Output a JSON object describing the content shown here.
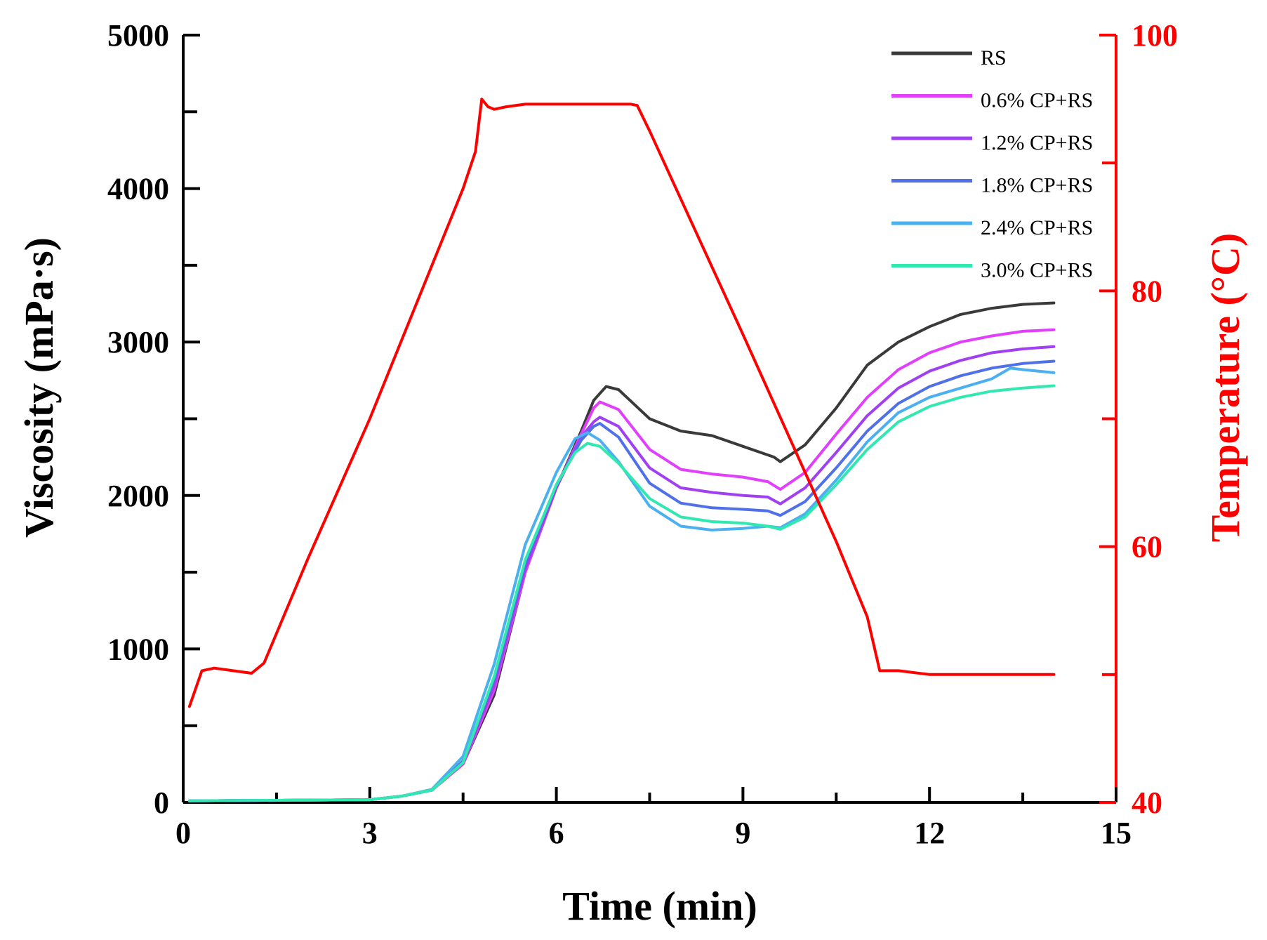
{
  "chart_data": {
    "type": "line",
    "x_axis": {
      "label": "Time (min)",
      "range": [
        0,
        15
      ],
      "ticks": [
        0,
        3,
        6,
        9,
        12,
        15
      ]
    },
    "y_axis_left": {
      "label": "Viscosity (mPa·s)",
      "range": [
        0,
        5000
      ],
      "ticks": [
        0,
        1000,
        2000,
        3000,
        4000,
        5000
      ]
    },
    "y_axis_right": {
      "label": "Temperature (°C)",
      "range": [
        40,
        100
      ],
      "ticks": [
        40,
        60,
        80,
        100
      ],
      "color": "#ff0000"
    },
    "grid": false,
    "legend_position": "top-right",
    "temperature": {
      "name": "Temperature",
      "color": "#ff0000",
      "points": [
        [
          0.1,
          47.5
        ],
        [
          0.3,
          50.3
        ],
        [
          0.5,
          50.5
        ],
        [
          0.8,
          50.3
        ],
        [
          1.1,
          50.1
        ],
        [
          1.3,
          50.9
        ],
        [
          2,
          59
        ],
        [
          3,
          70
        ],
        [
          4,
          82
        ],
        [
          4.5,
          88
        ],
        [
          4.7,
          90.9
        ],
        [
          4.8,
          95
        ],
        [
          4.9,
          94.4
        ],
        [
          5,
          94.2
        ],
        [
          5.2,
          94.4
        ],
        [
          5.5,
          94.6
        ],
        [
          6,
          94.6
        ],
        [
          7,
          94.6
        ],
        [
          7.2,
          94.6
        ],
        [
          7.3,
          94.5
        ],
        [
          7.5,
          92.5
        ],
        [
          8,
          87.2
        ],
        [
          9,
          76.6
        ],
        [
          10,
          65.8
        ],
        [
          10.5,
          60.4
        ],
        [
          11,
          54.5
        ],
        [
          11.2,
          50.3
        ],
        [
          11.5,
          50.3
        ],
        [
          12,
          50
        ],
        [
          13,
          50
        ],
        [
          14,
          50
        ]
      ]
    },
    "series": [
      {
        "name": "RS",
        "color": "#3a3a3a",
        "points": [
          [
            0.1,
            10
          ],
          [
            3,
            18
          ],
          [
            3.5,
            40
          ],
          [
            4,
            80
          ],
          [
            4.5,
            250
          ],
          [
            5,
            700
          ],
          [
            5.5,
            1500
          ],
          [
            6,
            2050
          ],
          [
            6.4,
            2420
          ],
          [
            6.6,
            2620
          ],
          [
            6.8,
            2710
          ],
          [
            7,
            2690
          ],
          [
            7.5,
            2500
          ],
          [
            8,
            2420
          ],
          [
            8.5,
            2390
          ],
          [
            9,
            2320
          ],
          [
            9.5,
            2250
          ],
          [
            9.6,
            2220
          ],
          [
            10,
            2330
          ],
          [
            10.5,
            2570
          ],
          [
            11,
            2850
          ],
          [
            11.5,
            3000
          ],
          [
            12,
            3100
          ],
          [
            12.5,
            3180
          ],
          [
            13,
            3220
          ],
          [
            13.5,
            3245
          ],
          [
            14,
            3255
          ]
        ]
      },
      {
        "name": "0.6% CP+RS",
        "color": "#e040fb",
        "points": [
          [
            0.1,
            10
          ],
          [
            3,
            18
          ],
          [
            3.5,
            40
          ],
          [
            4,
            80
          ],
          [
            4.5,
            250
          ],
          [
            5,
            730
          ],
          [
            5.5,
            1500
          ],
          [
            6,
            2050
          ],
          [
            6.4,
            2400
          ],
          [
            6.6,
            2570
          ],
          [
            6.7,
            2610
          ],
          [
            7,
            2560
          ],
          [
            7.5,
            2300
          ],
          [
            8,
            2170
          ],
          [
            8.5,
            2140
          ],
          [
            9,
            2120
          ],
          [
            9.4,
            2090
          ],
          [
            9.6,
            2040
          ],
          [
            10,
            2150
          ],
          [
            10.5,
            2400
          ],
          [
            11,
            2640
          ],
          [
            11.5,
            2820
          ],
          [
            12,
            2930
          ],
          [
            12.5,
            3000
          ],
          [
            13,
            3040
          ],
          [
            13.5,
            3070
          ],
          [
            14,
            3080
          ]
        ]
      },
      {
        "name": "1.2% CP+RS",
        "color": "#a040f0",
        "points": [
          [
            0.1,
            10
          ],
          [
            3,
            18
          ],
          [
            3.5,
            40
          ],
          [
            4,
            80
          ],
          [
            4.5,
            260
          ],
          [
            5,
            760
          ],
          [
            5.5,
            1520
          ],
          [
            6,
            2050
          ],
          [
            6.4,
            2380
          ],
          [
            6.6,
            2480
          ],
          [
            6.7,
            2510
          ],
          [
            7,
            2450
          ],
          [
            7.5,
            2180
          ],
          [
            8,
            2050
          ],
          [
            8.5,
            2020
          ],
          [
            9,
            2000
          ],
          [
            9.4,
            1990
          ],
          [
            9.6,
            1945
          ],
          [
            10,
            2050
          ],
          [
            10.5,
            2280
          ],
          [
            11,
            2520
          ],
          [
            11.5,
            2700
          ],
          [
            12,
            2810
          ],
          [
            12.5,
            2880
          ],
          [
            13,
            2930
          ],
          [
            13.5,
            2955
          ],
          [
            14,
            2970
          ]
        ]
      },
      {
        "name": "1.8% CP+RS",
        "color": "#5070e8",
        "points": [
          [
            0.1,
            10
          ],
          [
            3,
            18
          ],
          [
            3.5,
            40
          ],
          [
            4,
            80
          ],
          [
            4.5,
            270
          ],
          [
            5,
            800
          ],
          [
            5.5,
            1560
          ],
          [
            6,
            2070
          ],
          [
            6.4,
            2360
          ],
          [
            6.6,
            2450
          ],
          [
            6.7,
            2470
          ],
          [
            7,
            2380
          ],
          [
            7.5,
            2080
          ],
          [
            8,
            1950
          ],
          [
            8.5,
            1920
          ],
          [
            9,
            1910
          ],
          [
            9.4,
            1900
          ],
          [
            9.6,
            1870
          ],
          [
            10,
            1960
          ],
          [
            10.5,
            2180
          ],
          [
            11,
            2420
          ],
          [
            11.5,
            2600
          ],
          [
            12,
            2710
          ],
          [
            12.5,
            2780
          ],
          [
            13,
            2830
          ],
          [
            13.5,
            2860
          ],
          [
            14,
            2875
          ]
        ]
      },
      {
        "name": "2.4% CP+RS",
        "color": "#4ab0f0",
        "points": [
          [
            0.1,
            10
          ],
          [
            3,
            18
          ],
          [
            3.5,
            40
          ],
          [
            4,
            85
          ],
          [
            4.5,
            300
          ],
          [
            5,
            900
          ],
          [
            5.5,
            1680
          ],
          [
            6,
            2150
          ],
          [
            6.3,
            2370
          ],
          [
            6.5,
            2410
          ],
          [
            6.7,
            2360
          ],
          [
            7,
            2220
          ],
          [
            7.5,
            1930
          ],
          [
            8,
            1800
          ],
          [
            8.5,
            1775
          ],
          [
            9,
            1785
          ],
          [
            9.4,
            1800
          ],
          [
            9.6,
            1790
          ],
          [
            10,
            1880
          ],
          [
            10.5,
            2100
          ],
          [
            11,
            2350
          ],
          [
            11.5,
            2540
          ],
          [
            12,
            2640
          ],
          [
            12.5,
            2700
          ],
          [
            13,
            2760
          ],
          [
            13.3,
            2830
          ],
          [
            13.5,
            2820
          ],
          [
            14,
            2800
          ]
        ]
      },
      {
        "name": "3.0% CP+RS",
        "color": "#30e8b0",
        "points": [
          [
            0.1,
            10
          ],
          [
            3,
            18
          ],
          [
            3.5,
            40
          ],
          [
            4,
            80
          ],
          [
            4.5,
            260
          ],
          [
            5,
            820
          ],
          [
            5.5,
            1580
          ],
          [
            6,
            2070
          ],
          [
            6.3,
            2280
          ],
          [
            6.5,
            2340
          ],
          [
            6.7,
            2320
          ],
          [
            7,
            2210
          ],
          [
            7.5,
            1980
          ],
          [
            8,
            1860
          ],
          [
            8.5,
            1830
          ],
          [
            9,
            1820
          ],
          [
            9.4,
            1800
          ],
          [
            9.6,
            1780
          ],
          [
            10,
            1860
          ],
          [
            10.5,
            2070
          ],
          [
            11,
            2300
          ],
          [
            11.5,
            2480
          ],
          [
            12,
            2580
          ],
          [
            12.5,
            2640
          ],
          [
            13,
            2680
          ],
          [
            13.5,
            2700
          ],
          [
            14,
            2715
          ]
        ]
      }
    ]
  }
}
